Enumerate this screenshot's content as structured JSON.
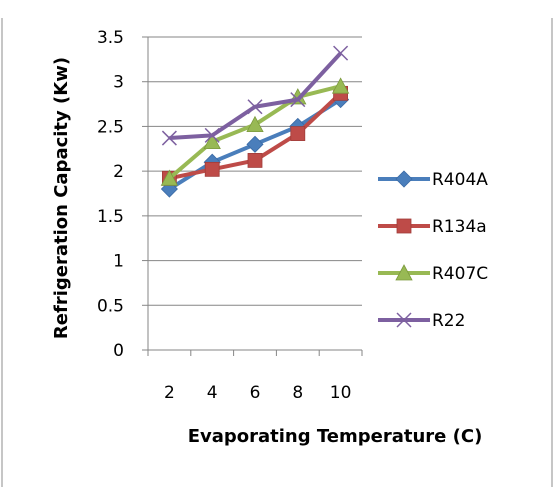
{
  "chart_data": {
    "type": "line",
    "title": "",
    "xlabel": "Evaporating Temperature (C)",
    "ylabel": "Refrigeration Capacity (Kw)",
    "x": [
      2,
      4,
      6,
      8,
      10
    ],
    "xticks": [
      "2",
      "4",
      "6",
      "8",
      "10"
    ],
    "ylim": [
      0,
      3.5
    ],
    "yticks": [
      "0",
      "0.5",
      "1",
      "1.5",
      "2",
      "2.5",
      "3",
      "3.5"
    ],
    "grid": true,
    "legend_position": "right",
    "series": [
      {
        "name": "R404A",
        "values": [
          1.8,
          2.1,
          2.3,
          2.5,
          2.8
        ],
        "color": "#4a7ebb",
        "marker": "diamond"
      },
      {
        "name": "R134a",
        "values": [
          1.92,
          2.02,
          2.12,
          2.42,
          2.87
        ],
        "color": "#be4b48",
        "marker": "square"
      },
      {
        "name": "R407C",
        "values": [
          1.92,
          2.33,
          2.52,
          2.83,
          2.95
        ],
        "color": "#98b954",
        "marker": "triangle"
      },
      {
        "name": "R22",
        "values": [
          2.37,
          2.4,
          2.72,
          2.8,
          3.32
        ],
        "color": "#7d60a0",
        "marker": "x"
      }
    ]
  }
}
